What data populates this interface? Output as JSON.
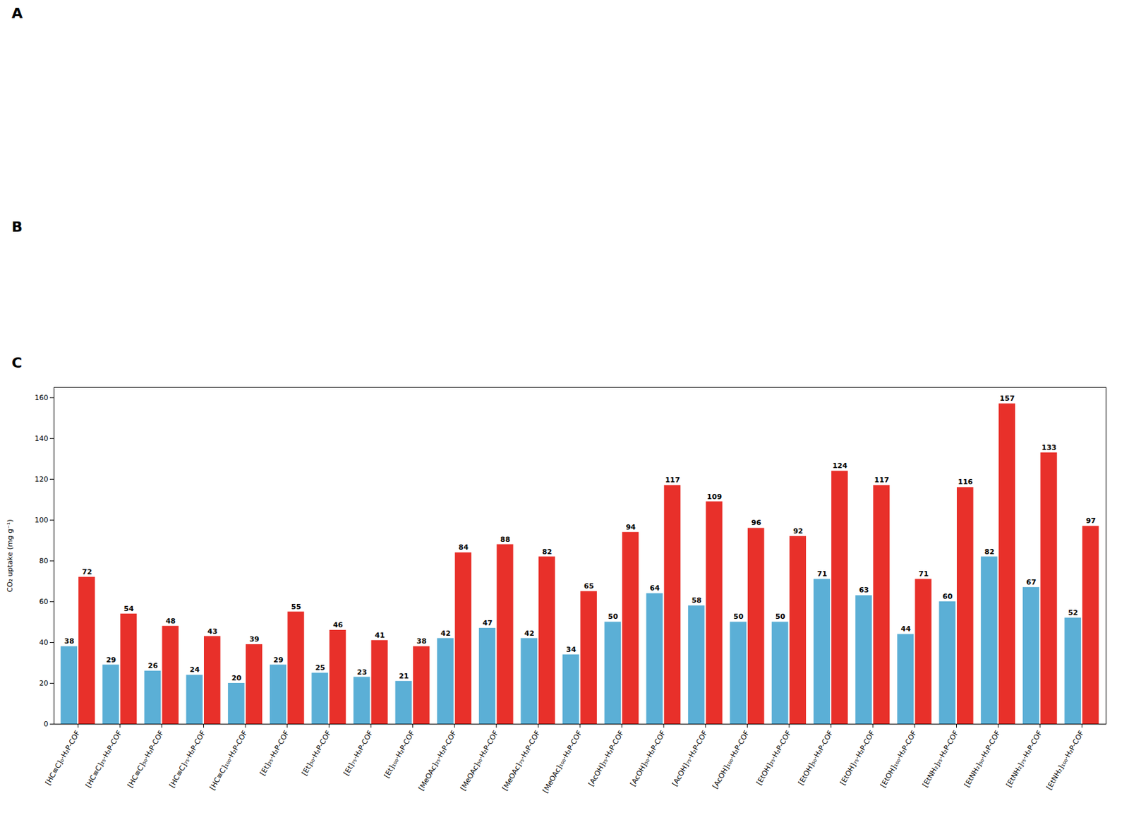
{
  "chart_data": {
    "type": "bar",
    "annotations": [
      "A",
      "B",
      "C"
    ],
    "ylabel": "CO₂ uptake (mg g⁻¹)",
    "categories": [
      "[HC≡C]₀·H₂P-COF",
      "[HC≡C]₂₅·H₂P-COF",
      "[HC≡C]₅₀·H₂P-COF",
      "[HC≡C]₇₅·H₂P-COF",
      "[HC≡C]₁₀₀·H₂P-COF",
      "[Et]₂₅·H₂P-COF",
      "[Et]₅₀·H₂P-COF",
      "[Et]₇₅·H₂P-COF",
      "[Et]₁₀₀·H₂P-COF",
      "[MeOAc]₂₅·H₂P-COF",
      "[MeOAc]₅₀·H₂P-COF",
      "[MeOAc]₇₅·H₂P-COF",
      "[MeOAc]₁₀₀·H₂P-COF",
      "[AcOH]₂₅·H₂P-COF",
      "[AcOH]₅₀·H₂P-COF",
      "[AcOH]₇₅·H₂P-COF",
      "[AcOH]₁₀₀·H₂P-COF",
      "[EtOH]₂₅·H₂P-COF",
      "[EtOH]₅₀·H₂P-COF",
      "[EtOH]₇₅·H₂P-COF",
      "[EtOH]₁₀₀·H₂P-COF",
      "[EtNH₂]₂₅·H₂P-COF",
      "[EtNH₂]₅₀·H₂P-COF",
      "[EtNH₂]₇₅·H₂P-COF",
      "[EtNH₂]₁₀₀·H₂P-COF"
    ],
    "series": [
      {
        "color": "#5bafd6",
        "values": [
          38,
          29,
          26,
          24,
          20,
          29,
          25,
          23,
          21,
          42,
          47,
          42,
          34,
          50,
          64,
          58,
          50,
          50,
          71,
          63,
          44,
          60,
          82,
          67,
          52
        ]
      },
      {
        "color": "#e8302a",
        "values": [
          72,
          54,
          48,
          43,
          39,
          55,
          46,
          41,
          38,
          84,
          88,
          82,
          65,
          94,
          117,
          109,
          96,
          92,
          124,
          117,
          71,
          116,
          157,
          133,
          97
        ]
      }
    ],
    "ylim": [
      0,
      165
    ],
    "yticks": [
      0,
      20,
      40,
      60,
      80,
      100,
      120,
      140,
      160
    ],
    "data_labels": true
  }
}
